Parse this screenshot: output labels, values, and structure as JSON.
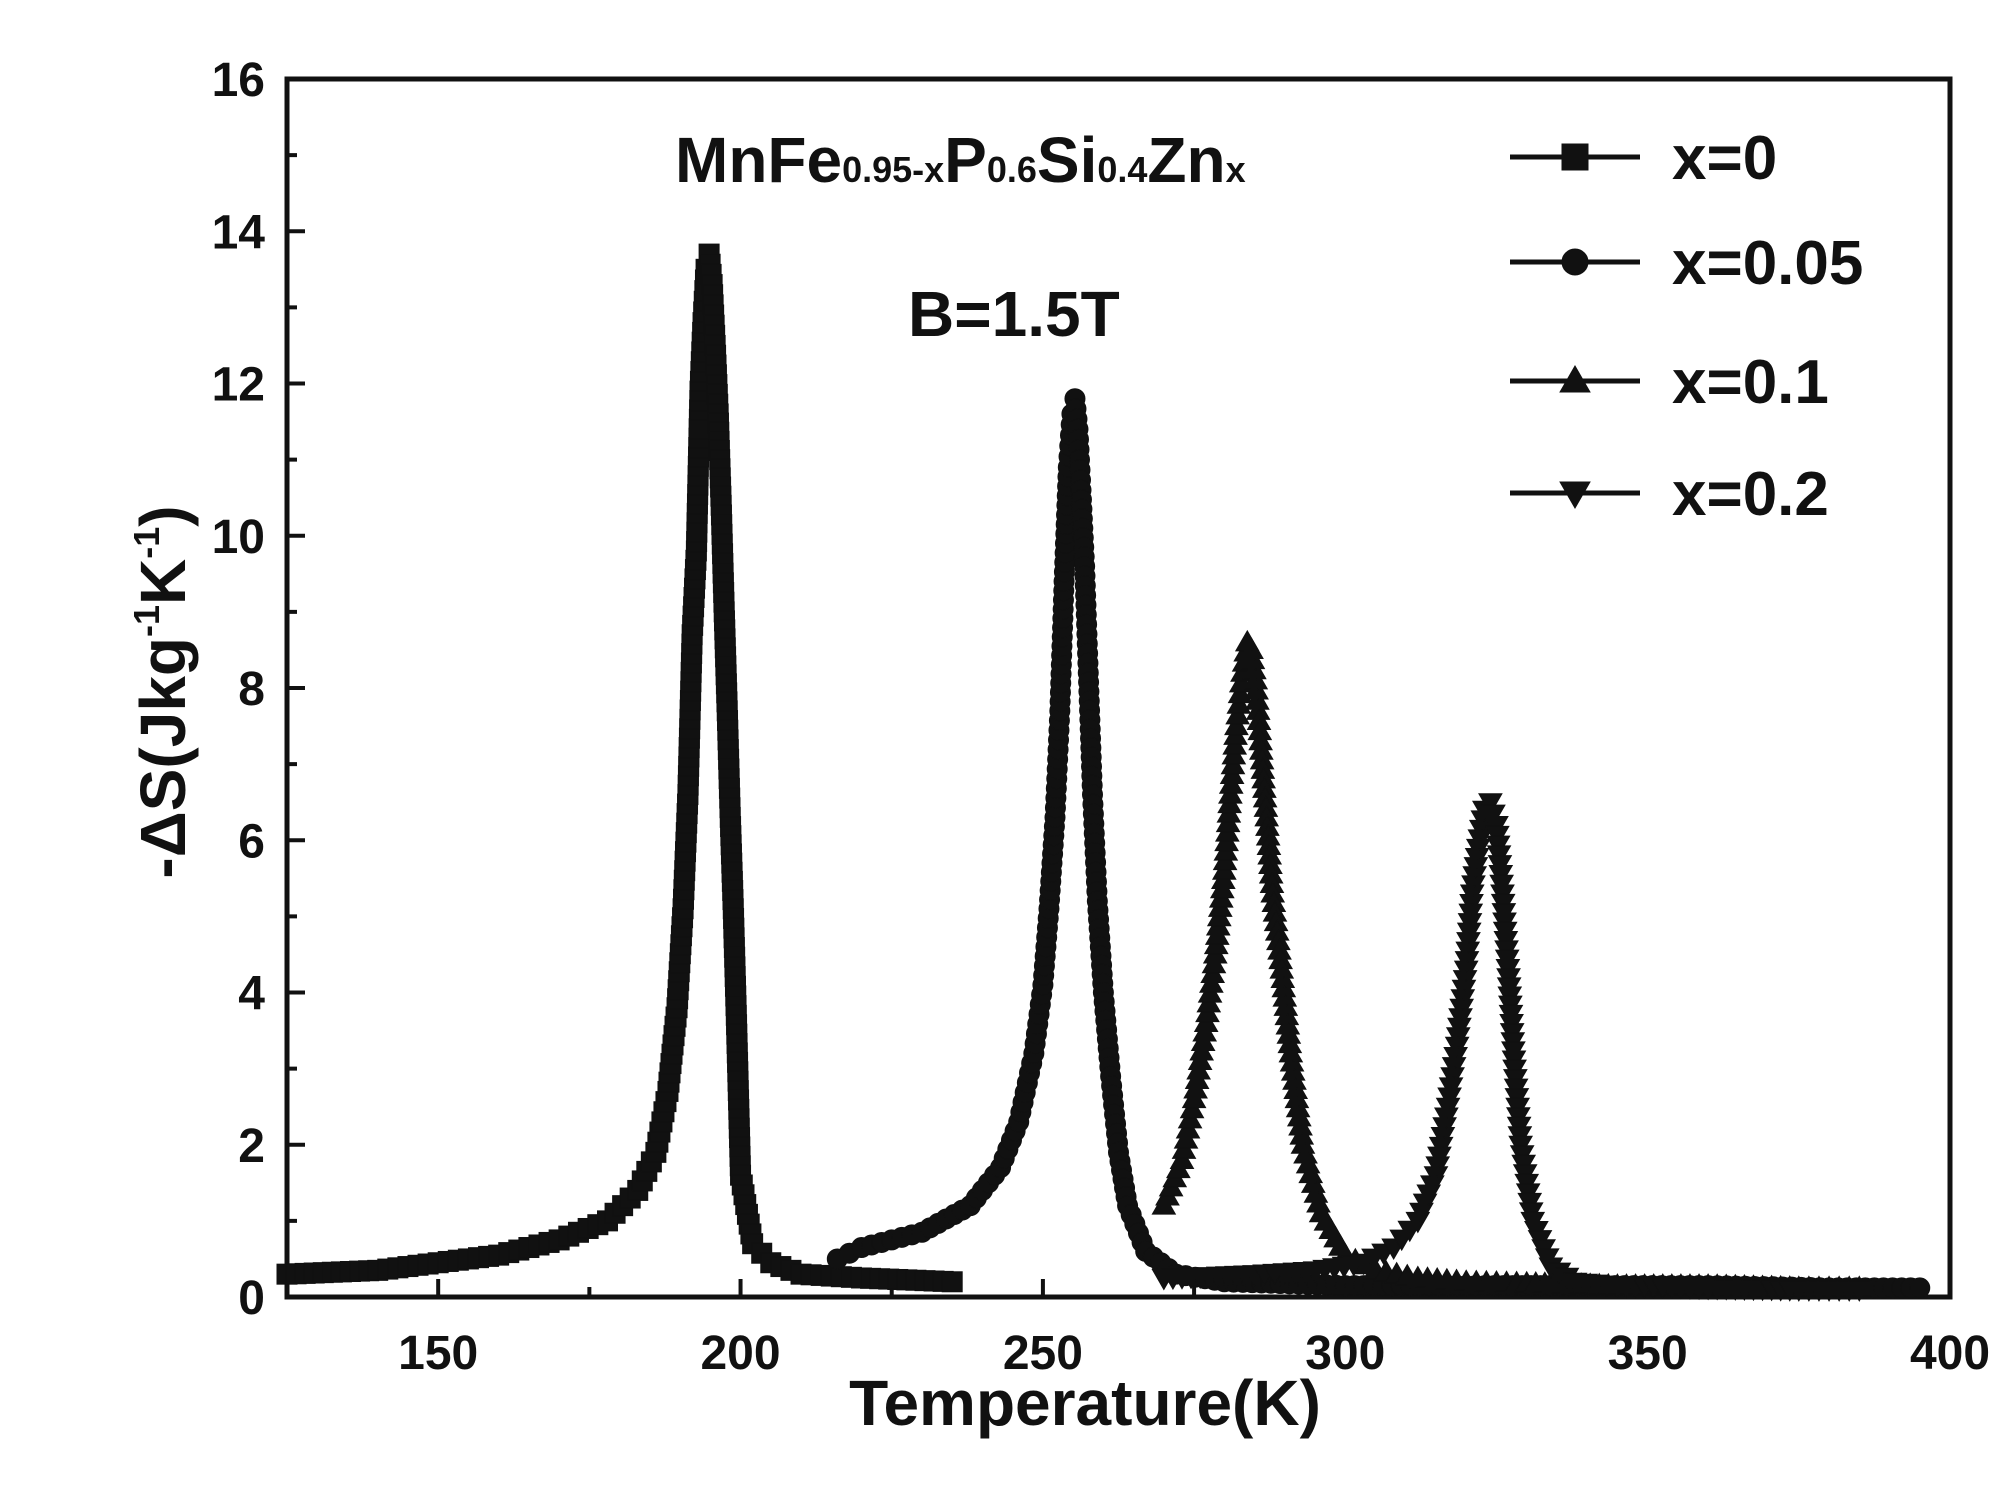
{
  "chart_data": {
    "type": "line",
    "xlabel": "Temperature(K)",
    "ylabel_parts": [
      "-ΔS(Jkg",
      "-1",
      "K",
      "-1",
      ")"
    ],
    "xlim": [
      125,
      400
    ],
    "ylim": [
      0,
      16
    ],
    "x_ticks": [
      150,
      200,
      250,
      300,
      350,
      400
    ],
    "y_ticks": [
      0,
      2,
      4,
      6,
      8,
      10,
      12,
      14,
      16
    ],
    "annotations": {
      "formula_parts": [
        {
          "text": "MnFe",
          "sub": false
        },
        {
          "text": "0.95-x",
          "sub": true
        },
        {
          "text": "P",
          "sub": false
        },
        {
          "text": "0.6",
          "sub": true
        },
        {
          "text": "Si",
          "sub": false
        },
        {
          "text": "0.4",
          "sub": true
        },
        {
          "text": "Zn",
          "sub": false
        },
        {
          "text": "x",
          "sub": true
        }
      ],
      "field": "B=1.5T"
    },
    "series": [
      {
        "name": "x=0",
        "marker": "square",
        "x": [
          125,
          140,
          150,
          160,
          170,
          178,
          183,
          186,
          188,
          189.5,
          190.5,
          191.3,
          192,
          192.7,
          193.3,
          193.8,
          194.3,
          194.8,
          195.3,
          195.8,
          196.3,
          196.8,
          197.3,
          197.8,
          198.3,
          198.8,
          199.3,
          200,
          202,
          205,
          210,
          220,
          235
        ],
        "y": [
          0.3,
          0.35,
          0.45,
          0.55,
          0.75,
          1.0,
          1.4,
          1.9,
          2.7,
          3.8,
          5.1,
          6.6,
          8.7,
          9.8,
          11.9,
          12.8,
          13.5,
          13.7,
          13.3,
          12.5,
          11.6,
          10.4,
          9.0,
          7.7,
          6.3,
          5.1,
          3.7,
          1.6,
          0.7,
          0.45,
          0.3,
          0.25,
          0.2
        ]
      },
      {
        "name": "x=0.05",
        "marker": "circle",
        "x": [
          216,
          220,
          230,
          238,
          243,
          246,
          248.5,
          250,
          251,
          252,
          252.8,
          253.5,
          254.2,
          254.8,
          255.3,
          255.8,
          256.3,
          256.9,
          257.5,
          258.2,
          259,
          260,
          261.2,
          262.5,
          264,
          267,
          272,
          280,
          300,
          320,
          340,
          360,
          380,
          395
        ],
        "y": [
          0.5,
          0.65,
          0.85,
          1.2,
          1.7,
          2.3,
          3.2,
          4.1,
          5.1,
          6.3,
          7.7,
          9.4,
          10.9,
          11.6,
          11.8,
          11.4,
          10.6,
          9.6,
          8.2,
          6.6,
          5.2,
          4.0,
          2.9,
          1.9,
          1.2,
          0.6,
          0.3,
          0.2,
          0.15,
          0.15,
          0.15,
          0.15,
          0.12,
          0.12
        ]
      },
      {
        "name": "x=0.1",
        "marker": "up",
        "x": [
          270,
          273,
          275,
          277,
          278.5,
          280,
          281,
          282,
          283,
          283.8,
          284.5,
          285.2,
          286,
          287,
          288,
          289.5,
          291,
          293,
          296,
          300,
          305,
          312,
          320,
          330,
          345,
          360,
          375,
          385
        ],
        "y": [
          1.2,
          1.8,
          2.6,
          3.6,
          4.5,
          5.6,
          6.6,
          7.5,
          8.2,
          8.6,
          8.5,
          8.1,
          7.3,
          6.3,
          5.3,
          4.3,
          3.2,
          2.0,
          1.1,
          0.55,
          0.35,
          0.25,
          0.2,
          0.18,
          0.15,
          0.15,
          0.12,
          0.12
        ]
      },
      {
        "name": "x=0.2",
        "marker": "down",
        "x": [
          270,
          285,
          295,
          303,
          308,
          312,
          315,
          317,
          318.5,
          320,
          321,
          322,
          323,
          324,
          325,
          326,
          327,
          328,
          329,
          331,
          334,
          338,
          345,
          360,
          375,
          385
        ],
        "y": [
          0.25,
          0.3,
          0.35,
          0.45,
          0.65,
          1.0,
          1.6,
          2.5,
          3.3,
          4.3,
          5.3,
          5.9,
          6.4,
          6.5,
          6.2,
          5.3,
          4.2,
          3.0,
          2.0,
          1.0,
          0.4,
          0.2,
          0.15,
          0.12,
          0.1,
          0.1
        ]
      }
    ]
  }
}
